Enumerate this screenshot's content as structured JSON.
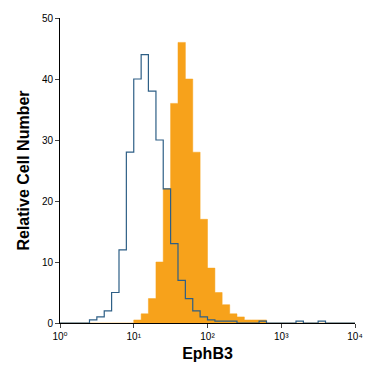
{
  "chart_data": {
    "type": "histogram",
    "x_label": "EphB3",
    "y_label": "Relative Cell Number",
    "log": "x",
    "grid": false,
    "bins": [
      1,
      1.26,
      1.58,
      2,
      2.51,
      3.16,
      3.98,
      5.01,
      6.31,
      7.94,
      10,
      12.6,
      15.8,
      20,
      25.1,
      31.6,
      39.8,
      50.1,
      63.1,
      79.4,
      100,
      126,
      158,
      200,
      251,
      316,
      398,
      501,
      631,
      794,
      1000,
      1259,
      1585,
      1995,
      2512,
      3162,
      3981,
      5012,
      6310,
      7943,
      10000
    ],
    "series": [
      {
        "type": "area",
        "color": "#f7a21b",
        "values": [
          0,
          0,
          0,
          0,
          0,
          0,
          0,
          0,
          0,
          0,
          0.5,
          1.5,
          4,
          10,
          22,
          36,
          46,
          40,
          28,
          17,
          9,
          5,
          3,
          1.5,
          1,
          0.5,
          0.5,
          0.5,
          0,
          0,
          0,
          0,
          0,
          0,
          0,
          0,
          0,
          0,
          0,
          0
        ]
      },
      {
        "type": "line",
        "color": "#2e5f86",
        "line_style": "solid",
        "values": [
          0,
          0,
          0,
          0,
          0.5,
          1,
          2,
          5,
          12,
          28,
          40,
          44,
          38,
          30,
          22,
          13,
          7,
          4,
          2,
          1,
          0.5,
          0.3,
          0.3,
          0.3,
          0,
          0,
          0,
          0.3,
          0,
          0,
          0,
          0,
          0.3,
          0,
          0,
          0.3,
          0,
          0,
          0,
          0
        ]
      }
    ],
    "xlim": [
      1,
      10000
    ],
    "xticks": [
      {
        "value": 1,
        "label": "10⁰"
      },
      {
        "value": 10,
        "label": "10¹"
      },
      {
        "value": 100,
        "label": "10²"
      },
      {
        "value": 1000,
        "label": "10³"
      },
      {
        "value": 10000,
        "label": "10⁴"
      }
    ],
    "ylim": [
      0,
      50
    ],
    "yticks": [
      0,
      10,
      20,
      30,
      40,
      50
    ]
  }
}
